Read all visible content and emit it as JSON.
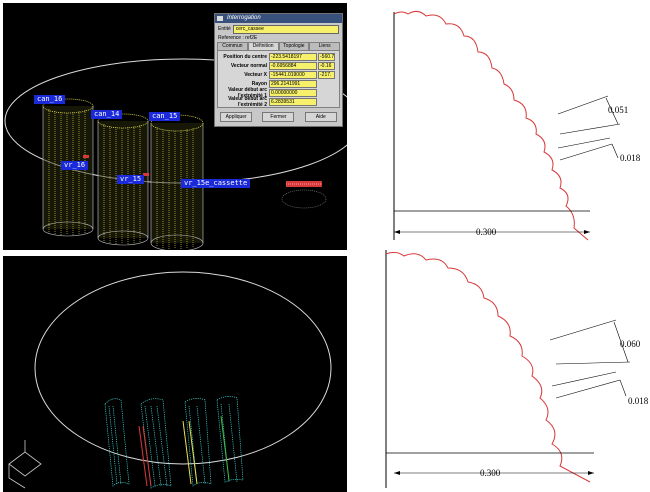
{
  "top_left": {
    "labels": {
      "can_16": "can_16",
      "can_14": "can_14",
      "can_15": "can_15",
      "vr_16": "vr_16",
      "vr_15": "vr_15",
      "vr_15_cassette": "vr_15e_cassette"
    },
    "dialog": {
      "title": "Interrogation",
      "object_label": "Entité",
      "object_value": "cerc_cassee",
      "reference": "Reference : ref2E",
      "tabs": [
        "Commun",
        "Définition",
        "Topologie",
        "Liens"
      ],
      "fields": [
        {
          "label": "Position du centre",
          "value": "-223.5418197",
          "value2": "-560.7"
        },
        {
          "label": "Vecteur normal",
          "value": "-0.6956884",
          "value2": "-0.16"
        },
        {
          "label": "Vecteur X",
          "value": "-15441.019000",
          "value2": "-217."
        },
        {
          "label": "Rayon",
          "value": "296.2141991",
          "value2": ""
        },
        {
          "label": "Valeur début arc l'extrémité 1",
          "value": "0.00000000",
          "value2": ""
        },
        {
          "label": "Valeur début arc l'extrémité 2",
          "value": "6.2839531",
          "value2": ""
        }
      ],
      "buttons": {
        "apply": "Appliquer",
        "close": "Fermer",
        "help": "Aide"
      }
    }
  },
  "top_right": {
    "dim1": "0.051",
    "dim2": "0.018",
    "dim3": "0.300"
  },
  "bottom_right": {
    "dim1": "0.060",
    "dim2": "0.018",
    "dim3": "0.300"
  },
  "colors": {
    "profile": "#d83a3a",
    "yellow_mesh": "#e8e050",
    "cyan_mesh": "#40d8d8",
    "label_bg": "#1a2ad8"
  }
}
